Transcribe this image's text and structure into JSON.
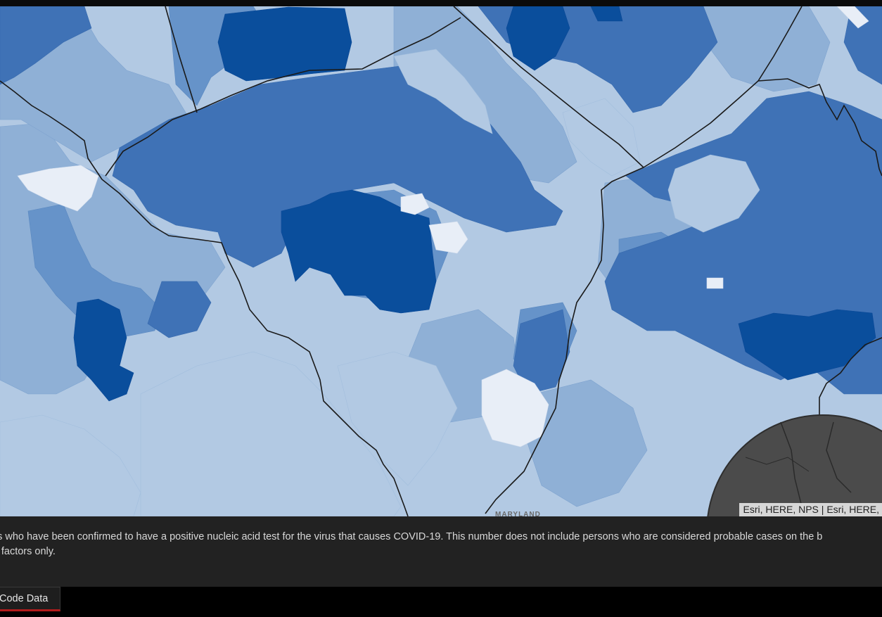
{
  "map": {
    "attribution": "Esri, HERE, NPS | Esri, HERE,",
    "state_label": "MARYLAND",
    "colors": {
      "class1": "#e8eef7",
      "class2": "#b2c9e3",
      "class3": "#8fb0d6",
      "class4": "#6693c9",
      "class5": "#3f72b6",
      "class6": "#0a4e9c",
      "boundary": "#1a1a1a",
      "inset": "#4b4b4b"
    }
  },
  "description": {
    "line1": "ns who have been confirmed to have a positive nucleic acid test for the virus that causes COVID-19.  This number does not include persons who are considered probable cases on the b",
    "line2": "r factors only."
  },
  "tabs": [
    {
      "label": "Code Data",
      "active": true
    }
  ]
}
